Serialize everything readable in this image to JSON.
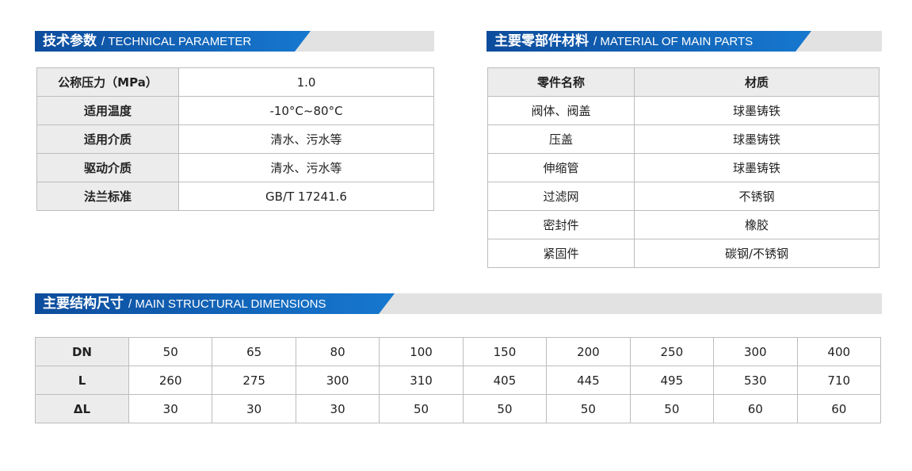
{
  "technical": {
    "title_cn": "技术参数",
    "title_en": "/ TECHNICAL PARAMETER",
    "rows": [
      {
        "label": "公称压力（MPa）",
        "value": "1.0"
      },
      {
        "label": "适用温度",
        "value": "-10°C~80°C"
      },
      {
        "label": "适用介质",
        "value": "清水、污水等"
      },
      {
        "label": "驱动介质",
        "value": "清水、污水等"
      },
      {
        "label": "法兰标准",
        "value": "GB/T 17241.6"
      }
    ]
  },
  "materials": {
    "title_cn": "主要零部件材料",
    "title_en": "/ MATERIAL OF MAIN PARTS",
    "headers": [
      "零件名称",
      "材质"
    ],
    "rows": [
      {
        "part": "阀体、阀盖",
        "material": "球墨铸铁"
      },
      {
        "part": "压盖",
        "material": "球墨铸铁"
      },
      {
        "part": "伸缩管",
        "material": "球墨铸铁"
      },
      {
        "part": "过滤网",
        "material": "不锈钢"
      },
      {
        "part": "密封件",
        "material": "橡胶"
      },
      {
        "part": "紧固件",
        "material": "碳钢/不锈钢"
      }
    ]
  },
  "dimensions": {
    "title_cn": "主要结构尺寸",
    "title_en": "/ MAIN STRUCTURAL DIMENSIONS",
    "rows": [
      {
        "label": "DN",
        "values": [
          "50",
          "65",
          "80",
          "100",
          "150",
          "200",
          "250",
          "300",
          "400"
        ]
      },
      {
        "label": "L",
        "values": [
          "260",
          "275",
          "300",
          "310",
          "405",
          "445",
          "495",
          "530",
          "710"
        ]
      },
      {
        "label": "ΔL",
        "values": [
          "30",
          "30",
          "30",
          "50",
          "50",
          "50",
          "50",
          "60",
          "60"
        ]
      }
    ]
  },
  "colors": {
    "header_blue": "#1678cf",
    "header_gray": "#e2e2e2",
    "label_bg": "#ececec"
  }
}
